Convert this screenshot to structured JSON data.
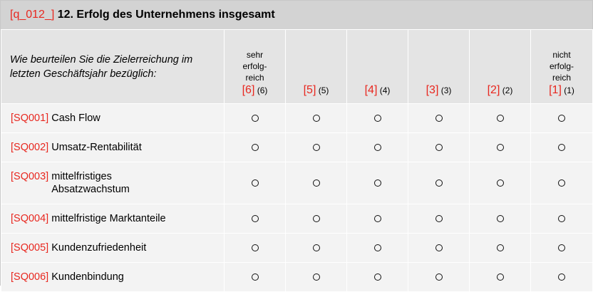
{
  "question": {
    "code": "[q_012_]",
    "title": "12. Erfolg des Unternehmens insgesamt",
    "prompt": "Wie beurteilen Sie die Zielerreichung im letzten Geschäftsjahr bezüglich:"
  },
  "columns": [
    {
      "label": "sehr erfolg-reich",
      "code": "[6]",
      "value": "(6)"
    },
    {
      "label": "",
      "code": "[5]",
      "value": "(5)"
    },
    {
      "label": "",
      "code": "[4]",
      "value": "(4)"
    },
    {
      "label": "",
      "code": "[3]",
      "value": "(3)"
    },
    {
      "label": "",
      "code": "[2]",
      "value": "(2)"
    },
    {
      "label": "nicht erfolg-reich",
      "code": "[1]",
      "value": "(1)"
    }
  ],
  "rows": [
    {
      "code": "[SQ001]",
      "label": "Cash Flow"
    },
    {
      "code": "[SQ002]",
      "label": "Umsatz-Rentabilität"
    },
    {
      "code": "[SQ003]",
      "label": "mittelfristiges Absatzwachstum"
    },
    {
      "code": "[SQ004]",
      "label": "mittelfristige Marktanteile"
    },
    {
      "code": "[SQ005]",
      "label": "Kundenzufriedenheit"
    },
    {
      "code": "[SQ006]",
      "label": "Kundenbindung"
    }
  ],
  "colors": {
    "code_red": "#e8271f",
    "header_bg": "#d3d3d3",
    "row_bg": "#f3f3f3"
  }
}
